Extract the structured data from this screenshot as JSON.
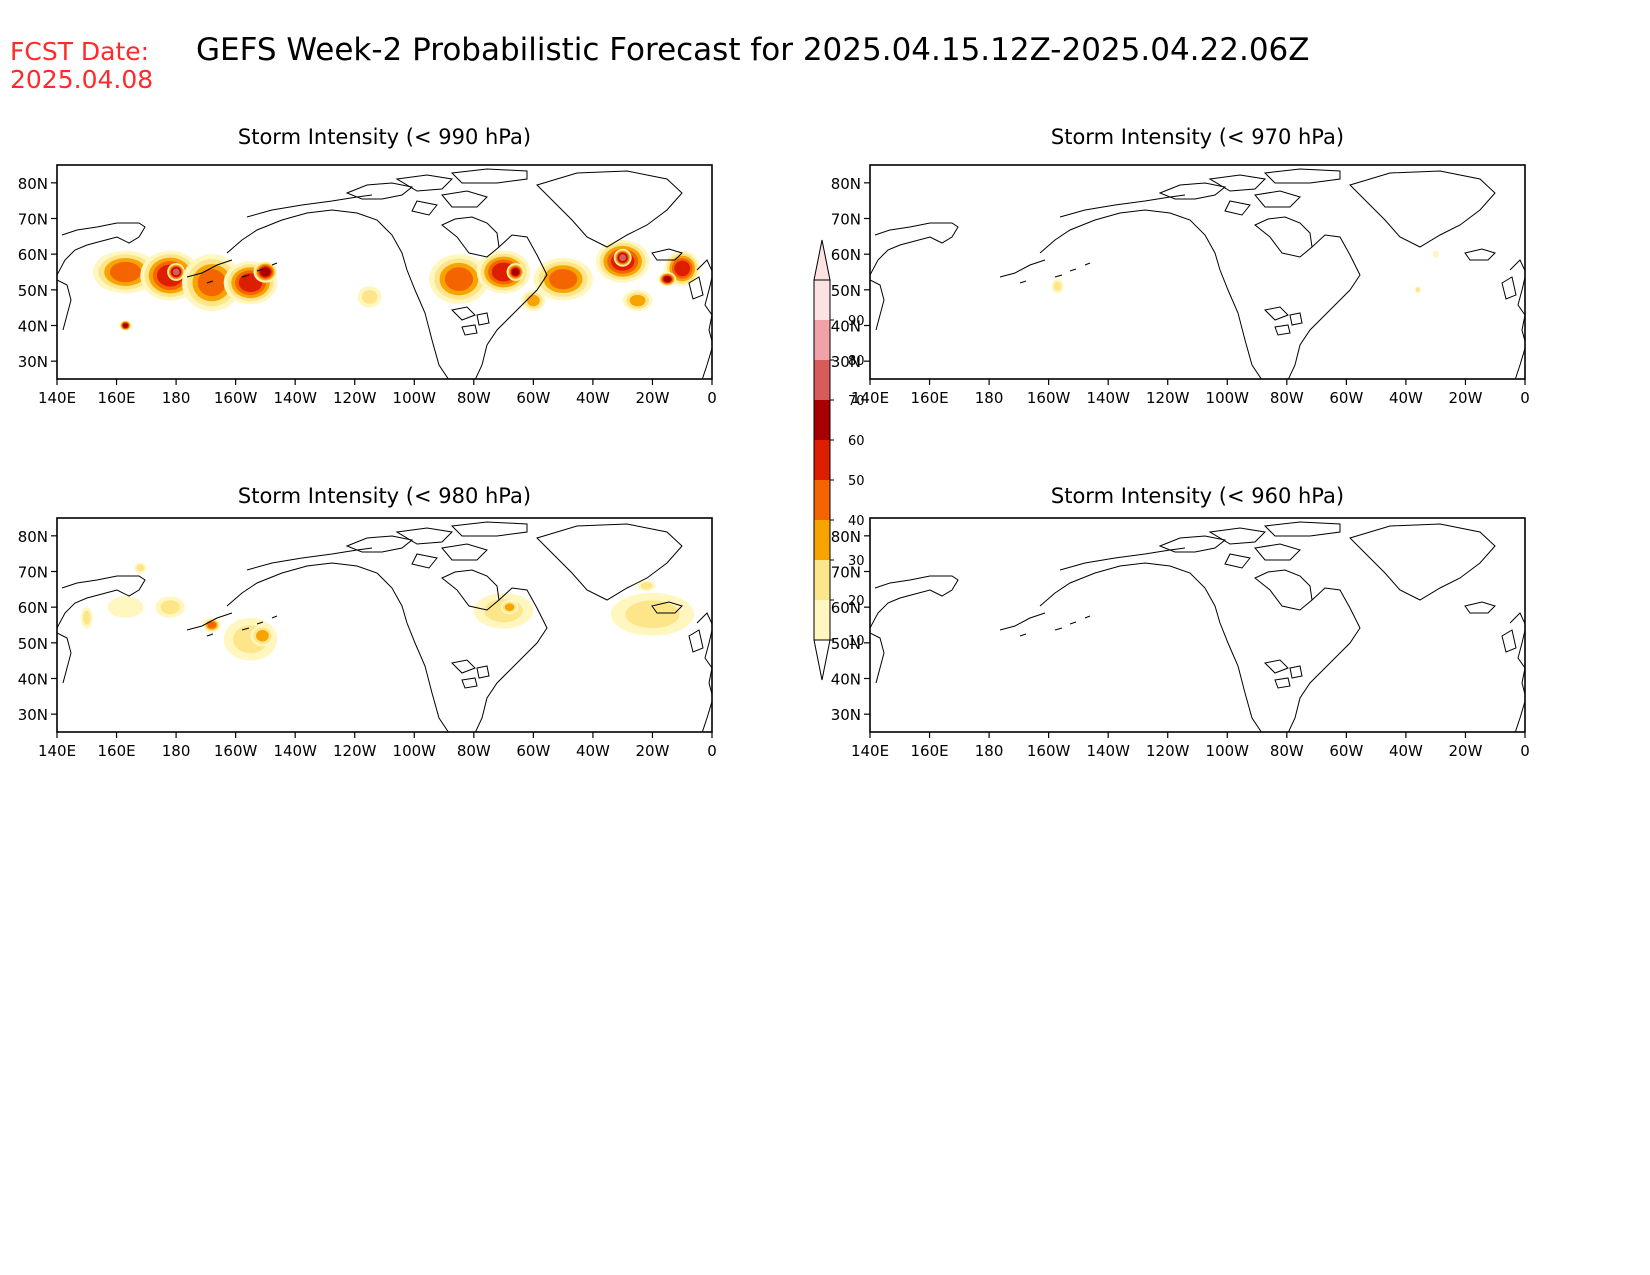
{
  "fcst_label": "FCST Date:",
  "fcst_date": "2025.04.08",
  "main_title": "GEFS Week-2 Probabilistic Forecast for 2025.04.15.12Z-2025.04.22.06Z",
  "lat_ticks": [
    "80N",
    "70N",
    "60N",
    "50N",
    "40N",
    "30N"
  ],
  "lon_ticks": [
    "140E",
    "160E",
    "180",
    "160W",
    "140W",
    "120W",
    "100W",
    "80W",
    "60W",
    "40W",
    "20W",
    "0"
  ],
  "colorbar": {
    "levels": [
      "10",
      "20",
      "30",
      "40",
      "50",
      "60",
      "70",
      "80",
      "90"
    ],
    "colors": [
      "#fff7bf",
      "#fde58a",
      "#f7a400",
      "#f46400",
      "#de1e00",
      "#a80000",
      "#d75b5b",
      "#f0a2a8",
      "#fde2e4"
    ]
  },
  "panels": [
    {
      "title": "Storm Intensity (< 990 hPa)",
      "blobs": [
        {
          "lon": 163,
          "lat": 55,
          "rlon": 11,
          "rlat": 6,
          "level": 3
        },
        {
          "lon": 178,
          "lat": 54,
          "rlon": 10,
          "rlat": 7,
          "level": 4
        },
        {
          "lon": 180,
          "lat": 55,
          "rlon": 3,
          "rlat": 2.5,
          "level": 6
        },
        {
          "lon": -168,
          "lat": 52,
          "rlon": 10,
          "rlat": 8,
          "level": 3
        },
        {
          "lon": -155,
          "lat": 52,
          "rlon": 9,
          "rlat": 6,
          "level": 4
        },
        {
          "lon": -150,
          "lat": 55,
          "rlon": 4,
          "rlat": 3,
          "level": 5
        },
        {
          "lon": 163,
          "lat": 40,
          "rlon": 2,
          "rlat": 1.5,
          "level": 5
        },
        {
          "lon": -115,
          "lat": 48,
          "rlon": 4,
          "rlat": 3,
          "level": 1
        },
        {
          "lon": -85,
          "lat": 53,
          "rlon": 10,
          "rlat": 7,
          "level": 3
        },
        {
          "lon": -70,
          "lat": 55,
          "rlon": 9,
          "rlat": 6,
          "level": 4
        },
        {
          "lon": -66,
          "lat": 55,
          "rlon": 3,
          "rlat": 2.5,
          "level": 5
        },
        {
          "lon": -50,
          "lat": 53,
          "rlon": 10,
          "rlat": 6,
          "level": 3
        },
        {
          "lon": -30,
          "lat": 58,
          "rlon": 9,
          "rlat": 6,
          "level": 4
        },
        {
          "lon": -30,
          "lat": 59,
          "rlon": 3,
          "rlat": 2.5,
          "level": 6
        },
        {
          "lon": -10,
          "lat": 56,
          "rlon": 6,
          "rlat": 5,
          "level": 4
        },
        {
          "lon": -15,
          "lat": 53,
          "rlon": 3,
          "rlat": 2,
          "level": 5
        },
        {
          "lon": -60,
          "lat": 47,
          "rlon": 4,
          "rlat": 3,
          "level": 2
        },
        {
          "lon": -25,
          "lat": 47,
          "rlon": 5,
          "rlat": 3,
          "level": 2
        }
      ]
    },
    {
      "title": "Storm Intensity (< 970 hPa)",
      "blobs": [
        {
          "lon": -157,
          "lat": 51,
          "rlon": 2,
          "rlat": 2,
          "level": 1
        },
        {
          "lon": -36,
          "lat": 50,
          "rlon": 1,
          "rlat": 1,
          "level": 1
        },
        {
          "lon": -30,
          "lat": 60,
          "rlon": 1,
          "rlat": 1,
          "level": 0
        }
      ]
    },
    {
      "title": "Storm Intensity (< 980 hPa)",
      "blobs": [
        {
          "lon": 163,
          "lat": 60,
          "rlon": 6,
          "rlat": 3,
          "level": 0
        },
        {
          "lon": 178,
          "lat": 60,
          "rlon": 5,
          "rlat": 3,
          "level": 1
        },
        {
          "lon": -168,
          "lat": 55,
          "rlon": 3,
          "rlat": 2,
          "level": 3
        },
        {
          "lon": -155,
          "lat": 51,
          "rlon": 9,
          "rlat": 6,
          "level": 1
        },
        {
          "lon": -151,
          "lat": 52,
          "rlon": 4,
          "rlat": 3,
          "level": 2
        },
        {
          "lon": 150,
          "lat": 57,
          "rlon": 2,
          "rlat": 3,
          "level": 1
        },
        {
          "lon": 168,
          "lat": 71,
          "rlon": 2,
          "rlat": 1.5,
          "level": 1
        },
        {
          "lon": -70,
          "lat": 59,
          "rlon": 10,
          "rlat": 5,
          "level": 1
        },
        {
          "lon": -68,
          "lat": 60,
          "rlon": 3,
          "rlat": 2,
          "level": 2
        },
        {
          "lon": -20,
          "lat": 58,
          "rlon": 14,
          "rlat": 6,
          "level": 1
        },
        {
          "lon": -22,
          "lat": 66,
          "rlon": 3,
          "rlat": 1.5,
          "level": 1
        }
      ]
    },
    {
      "title": "Storm Intensity (< 960 hPa)",
      "blobs": []
    }
  ]
}
